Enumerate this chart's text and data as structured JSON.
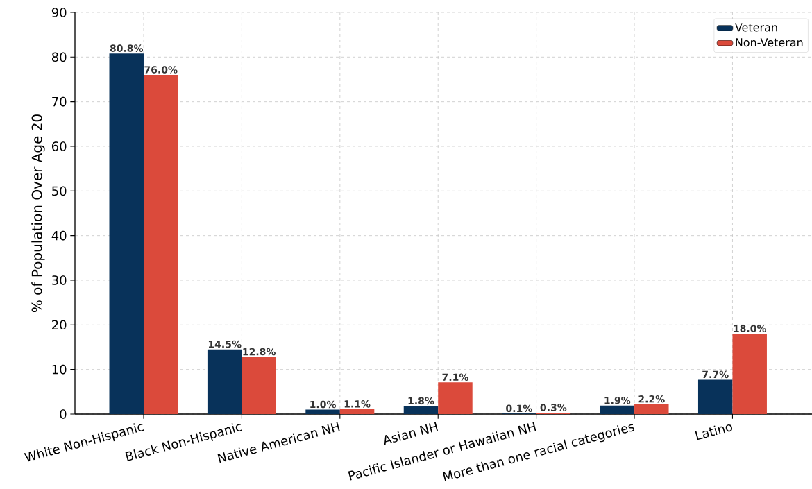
{
  "chart_data": {
    "type": "bar",
    "ylabel": "% of Population Over Age 20",
    "categories": [
      "White Non-Hispanic",
      "Black Non-Hispanic",
      "Native American NH",
      "Asian NH",
      "Pacific Islander or Hawaiian NH",
      "More than one racial categories",
      "Latino"
    ],
    "series": [
      {
        "name": "Veteran",
        "color": "#08325a",
        "values": [
          80.8,
          14.5,
          1.0,
          1.8,
          0.1,
          1.9,
          7.7
        ],
        "value_labels": [
          "80.8%",
          "14.5%",
          "1.0%",
          "1.8%",
          "0.1%",
          "1.9%",
          "7.7%"
        ]
      },
      {
        "name": "Non-Veteran",
        "color": "#db4a3b",
        "values": [
          76.0,
          12.8,
          1.1,
          7.1,
          0.3,
          2.2,
          18.0
        ],
        "value_labels": [
          "76.0%",
          "12.8%",
          "1.1%",
          "7.1%",
          "0.3%",
          "2.2%",
          "18.0%"
        ]
      }
    ],
    "ylim": [
      0,
      90
    ],
    "yticks": [
      0,
      10,
      20,
      30,
      40,
      50,
      60,
      70,
      80,
      90
    ],
    "grid": true,
    "legend": "top right"
  }
}
